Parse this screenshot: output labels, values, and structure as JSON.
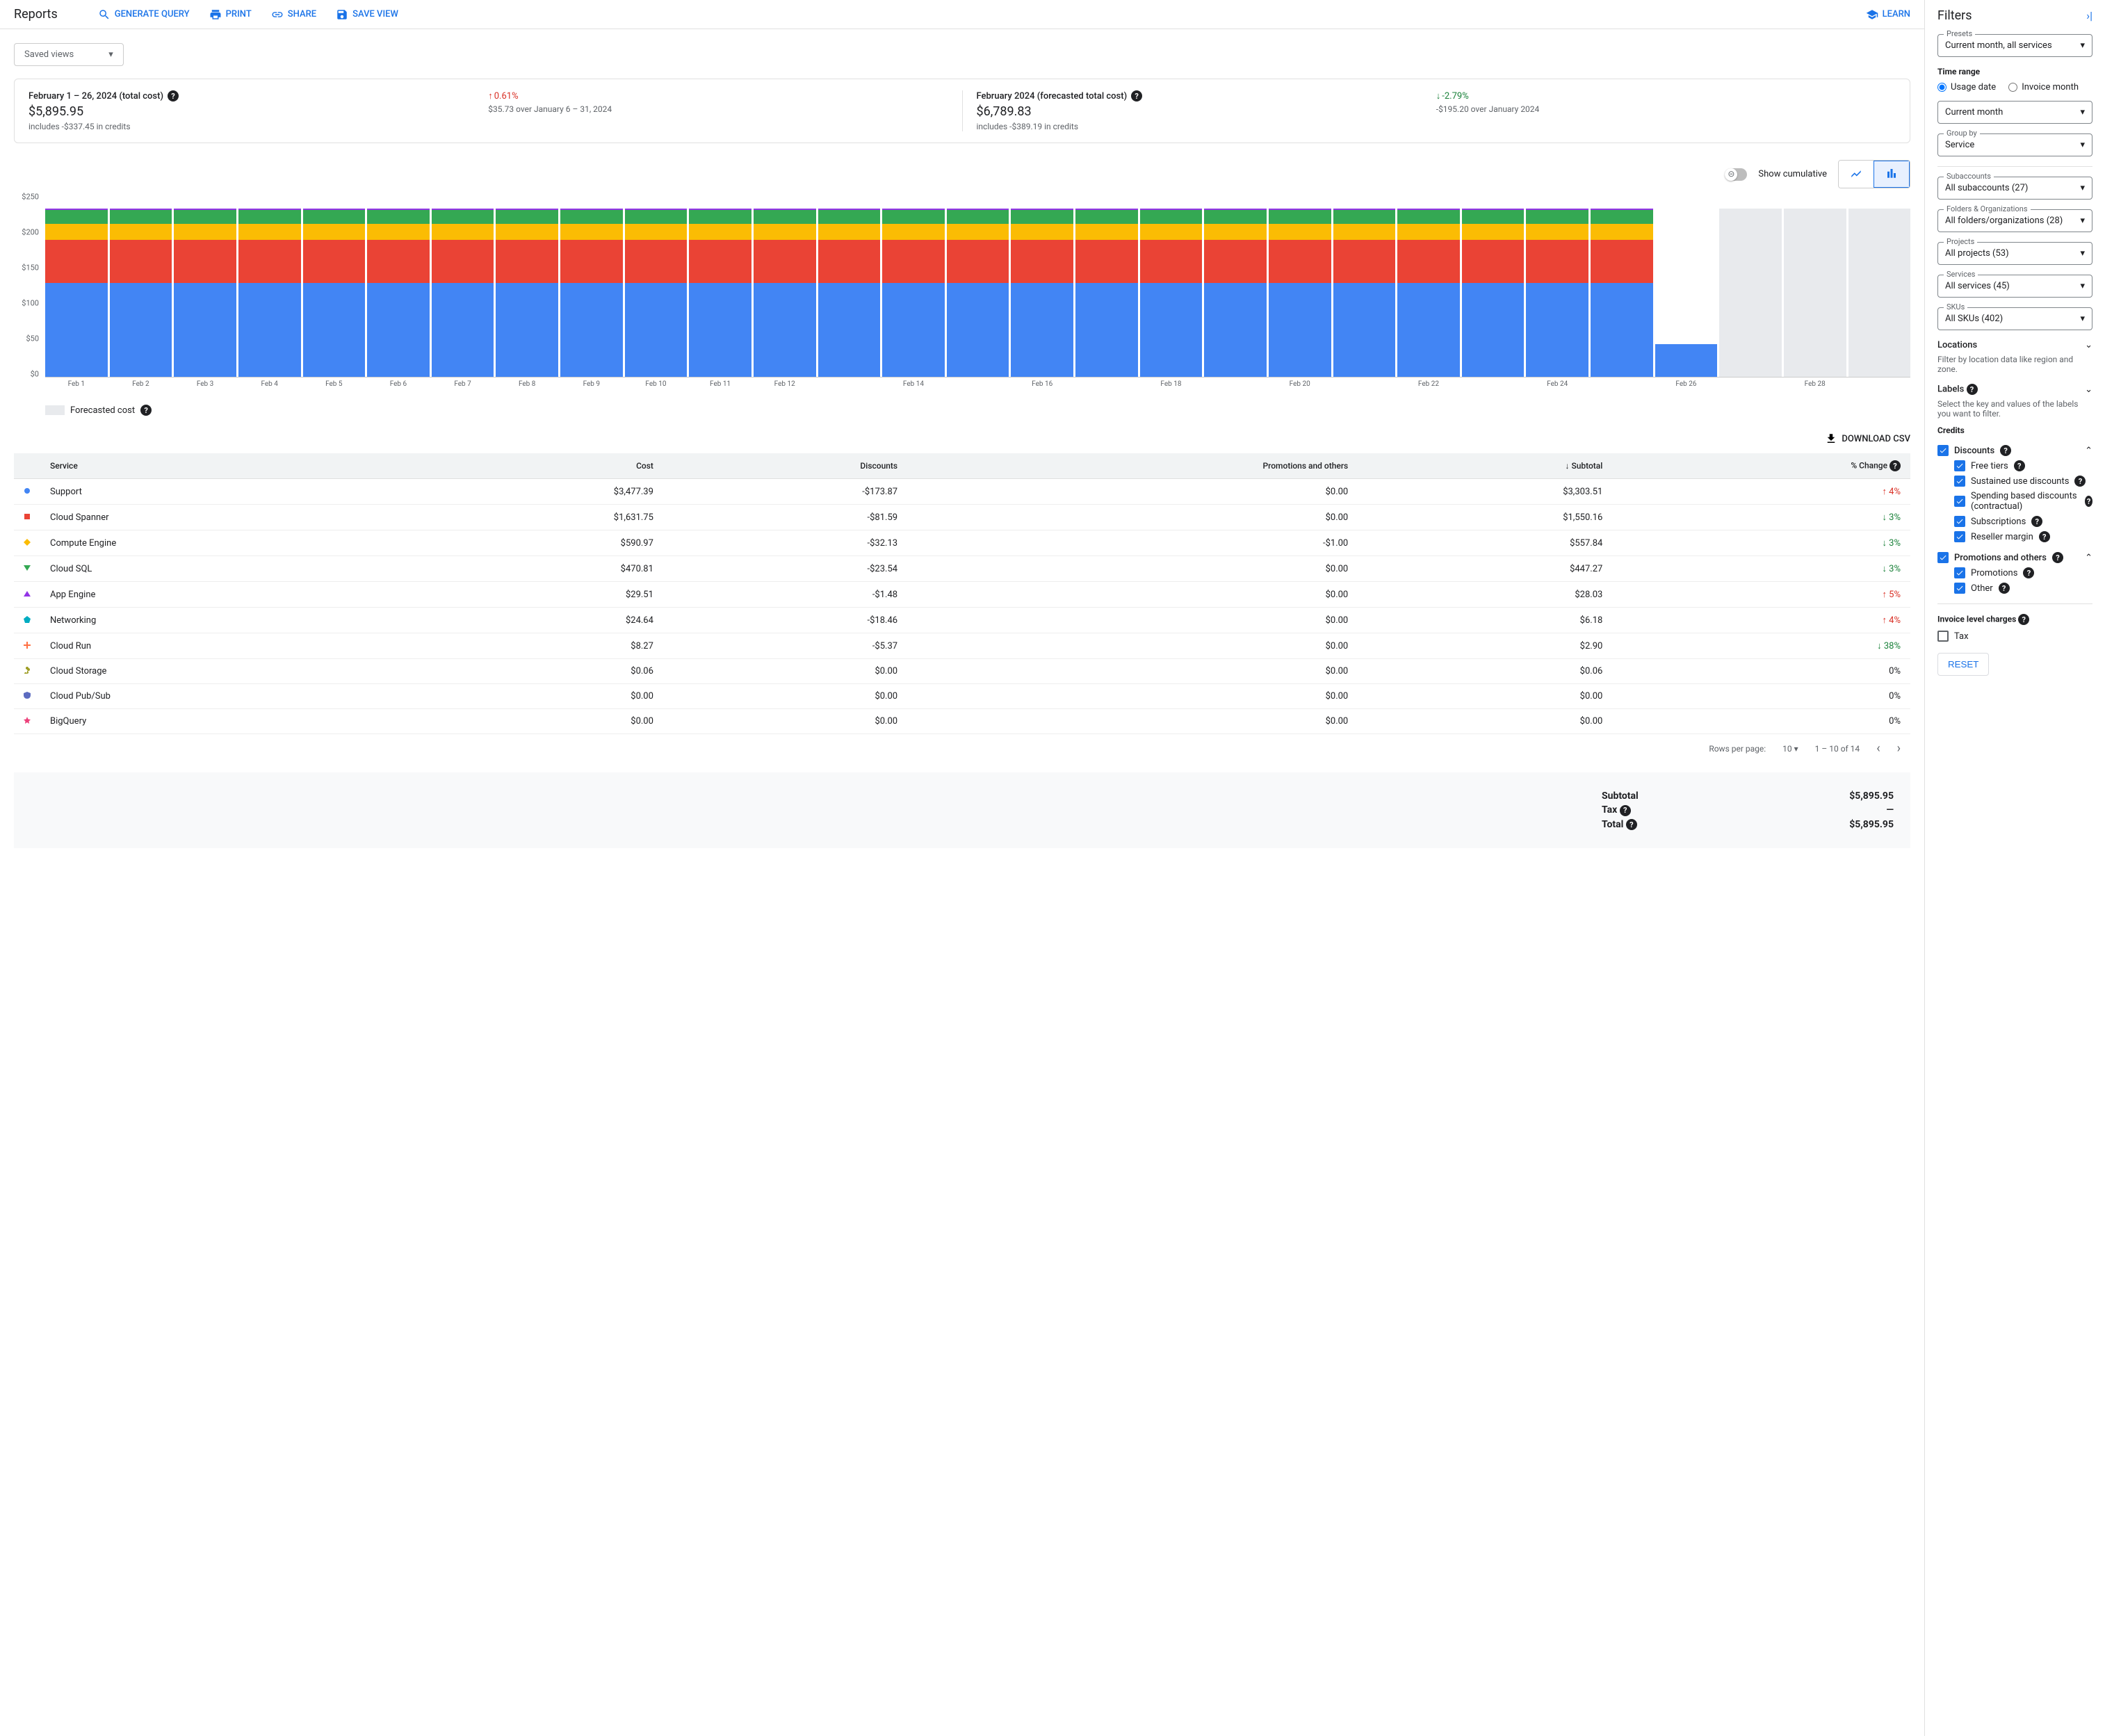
{
  "page_title": "Reports",
  "top_actions": {
    "generate_query": "GENERATE QUERY",
    "print": "PRINT",
    "share": "SHARE",
    "save_view": "SAVE VIEW",
    "learn": "LEARN"
  },
  "saved_views": "Saved views",
  "summary": {
    "left": {
      "title": "February 1 – 26, 2024 (total cost)",
      "amount": "$5,895.95",
      "sub": "includes -$337.45 in credits",
      "delta": "0.61%",
      "delta_dir": "up",
      "delta_sub": "$35.73 over January 6 – 31, 2024"
    },
    "right": {
      "title": "February 2024 (forecasted total cost)",
      "amount": "$6,789.83",
      "sub": "includes -$389.19 in credits",
      "delta": "-2.79%",
      "delta_dir": "down",
      "delta_sub": "-$195.20 over January 2024"
    }
  },
  "chart": {
    "cumulative_label": "Show cumulative",
    "type": "stacked-bar",
    "y_axis": {
      "max": 250,
      "ticks": [
        "$250",
        "$200",
        "$150",
        "$100",
        "$50",
        "$0"
      ]
    },
    "series_colors": {
      "support": "#4285f4",
      "spanner": "#ea4335",
      "compute": "#fbbc04",
      "cloudsql": "#34a853",
      "other": "#9334e6"
    },
    "forecast_color": "#e8eaed",
    "days": [
      {
        "label": "Feb 1",
        "stack": [
          130,
          60,
          22,
          20,
          2
        ],
        "forecast": false
      },
      {
        "label": "Feb 2",
        "stack": [
          130,
          60,
          22,
          20,
          2
        ],
        "forecast": false
      },
      {
        "label": "Feb 3",
        "stack": [
          130,
          60,
          22,
          20,
          2
        ],
        "forecast": false
      },
      {
        "label": "Feb 4",
        "stack": [
          130,
          60,
          22,
          20,
          2
        ],
        "forecast": false
      },
      {
        "label": "Feb 5",
        "stack": [
          130,
          60,
          22,
          20,
          2
        ],
        "forecast": false
      },
      {
        "label": "Feb 6",
        "stack": [
          130,
          60,
          22,
          20,
          2
        ],
        "forecast": false
      },
      {
        "label": "Feb 7",
        "stack": [
          130,
          60,
          22,
          20,
          2
        ],
        "forecast": false
      },
      {
        "label": "Feb 8",
        "stack": [
          130,
          60,
          22,
          20,
          2
        ],
        "forecast": false
      },
      {
        "label": "Feb 9",
        "stack": [
          130,
          60,
          22,
          20,
          2
        ],
        "forecast": false
      },
      {
        "label": "Feb 10",
        "stack": [
          130,
          60,
          22,
          20,
          2
        ],
        "forecast": false
      },
      {
        "label": "Feb 11",
        "stack": [
          130,
          60,
          22,
          20,
          2
        ],
        "forecast": false
      },
      {
        "label": "Feb 12",
        "stack": [
          130,
          60,
          22,
          20,
          2
        ],
        "forecast": false
      },
      {
        "label": "",
        "stack": [
          130,
          60,
          22,
          20,
          2
        ],
        "forecast": false
      },
      {
        "label": "Feb 14",
        "stack": [
          130,
          60,
          22,
          20,
          2
        ],
        "forecast": false
      },
      {
        "label": "",
        "stack": [
          130,
          60,
          22,
          20,
          2
        ],
        "forecast": false
      },
      {
        "label": "Feb 16",
        "stack": [
          130,
          60,
          22,
          20,
          2
        ],
        "forecast": false
      },
      {
        "label": "",
        "stack": [
          130,
          60,
          22,
          20,
          2
        ],
        "forecast": false
      },
      {
        "label": "Feb 18",
        "stack": [
          130,
          60,
          22,
          20,
          2
        ],
        "forecast": false
      },
      {
        "label": "",
        "stack": [
          130,
          60,
          22,
          20,
          2
        ],
        "forecast": false
      },
      {
        "label": "Feb 20",
        "stack": [
          130,
          60,
          22,
          20,
          2
        ],
        "forecast": false
      },
      {
        "label": "",
        "stack": [
          130,
          60,
          22,
          20,
          2
        ],
        "forecast": false
      },
      {
        "label": "Feb 22",
        "stack": [
          130,
          60,
          22,
          20,
          2
        ],
        "forecast": false
      },
      {
        "label": "",
        "stack": [
          130,
          60,
          22,
          20,
          2
        ],
        "forecast": false
      },
      {
        "label": "Feb 24",
        "stack": [
          130,
          60,
          22,
          20,
          2
        ],
        "forecast": false
      },
      {
        "label": "",
        "stack": [
          130,
          60,
          22,
          20,
          2
        ],
        "forecast": false
      },
      {
        "label": "Feb 26",
        "stack": [
          45,
          0,
          0,
          0,
          0
        ],
        "forecast": false
      },
      {
        "label": "",
        "stack": [
          234
        ],
        "forecast": true
      },
      {
        "label": "Feb 28",
        "stack": [
          234
        ],
        "forecast": true
      },
      {
        "label": "",
        "stack": [
          234
        ],
        "forecast": true
      }
    ],
    "forecast_legend": "Forecasted cost"
  },
  "download_csv": "DOWNLOAD CSV",
  "table": {
    "columns": [
      "",
      "Service",
      "Cost",
      "Discounts",
      "Promotions and others",
      "Subtotal",
      "% Change"
    ],
    "rows": [
      {
        "color": "#4285f4",
        "shape": "circle",
        "service": "Support",
        "cost": "$3,477.39",
        "discounts": "-$173.87",
        "promo": "$0.00",
        "subtotal": "$3,303.51",
        "change": "4%",
        "dir": "up"
      },
      {
        "color": "#ea4335",
        "shape": "square",
        "service": "Cloud Spanner",
        "cost": "$1,631.75",
        "discounts": "-$81.59",
        "promo": "$0.00",
        "subtotal": "$1,550.16",
        "change": "3%",
        "dir": "down"
      },
      {
        "color": "#fbbc04",
        "shape": "diamond",
        "service": "Compute Engine",
        "cost": "$590.97",
        "discounts": "-$32.13",
        "promo": "-$1.00",
        "subtotal": "$557.84",
        "change": "3%",
        "dir": "down"
      },
      {
        "color": "#34a853",
        "shape": "tri-down",
        "service": "Cloud SQL",
        "cost": "$470.81",
        "discounts": "-$23.54",
        "promo": "$0.00",
        "subtotal": "$447.27",
        "change": "3%",
        "dir": "down"
      },
      {
        "color": "#9334e6",
        "shape": "tri-up",
        "service": "App Engine",
        "cost": "$29.51",
        "discounts": "-$1.48",
        "promo": "$0.00",
        "subtotal": "$28.03",
        "change": "5%",
        "dir": "up"
      },
      {
        "color": "#00acc1",
        "shape": "pentagon",
        "service": "Networking",
        "cost": "$24.64",
        "discounts": "-$18.46",
        "promo": "$0.00",
        "subtotal": "$6.18",
        "change": "4%",
        "dir": "up"
      },
      {
        "color": "#ff7043",
        "shape": "plus",
        "service": "Cloud Run",
        "cost": "$8.27",
        "discounts": "-$5.37",
        "promo": "$0.00",
        "subtotal": "$2.90",
        "change": "38%",
        "dir": "down"
      },
      {
        "color": "#9e9d24",
        "shape": "clover",
        "service": "Cloud Storage",
        "cost": "$0.06",
        "discounts": "$0.00",
        "promo": "$0.00",
        "subtotal": "$0.06",
        "change": "0%",
        "dir": "none"
      },
      {
        "color": "#5c6bc0",
        "shape": "shield",
        "service": "Cloud Pub/Sub",
        "cost": "$0.00",
        "discounts": "$0.00",
        "promo": "$0.00",
        "subtotal": "$0.00",
        "change": "0%",
        "dir": "none"
      },
      {
        "color": "#ec407a",
        "shape": "star",
        "service": "BigQuery",
        "cost": "$0.00",
        "discounts": "$0.00",
        "promo": "$0.00",
        "subtotal": "$0.00",
        "change": "0%",
        "dir": "none"
      }
    ]
  },
  "pager": {
    "rpp_label": "Rows per page:",
    "rpp_value": "10",
    "range": "1 – 10 of 14"
  },
  "totals": {
    "subtotal_label": "Subtotal",
    "subtotal": "$5,895.95",
    "tax_label": "Tax",
    "tax": "—",
    "total_label": "Total",
    "total": "$5,895.95"
  },
  "filters": {
    "title": "Filters",
    "preset_label": "Presets",
    "preset_value": "Current month, all services",
    "time_range": "Time range",
    "usage_date": "Usage date",
    "invoice_month": "Invoice month",
    "current_month": "Current month",
    "group_by_label": "Group by",
    "group_by_value": "Service",
    "subaccounts_label": "Subaccounts",
    "subaccounts_value": "All subaccounts (27)",
    "folders_label": "Folders & Organizations",
    "folders_value": "All folders/organizations (28)",
    "projects_label": "Projects",
    "projects_value": "All projects (53)",
    "services_label": "Services",
    "services_value": "All services (45)",
    "skus_label": "SKUs",
    "skus_value": "All SKUs (402)",
    "locations": "Locations",
    "locations_help": "Filter by location data like region and zone.",
    "labels": "Labels",
    "labels_help": "Select the key and values of the labels you want to filter.",
    "credits": "Credits",
    "discounts": "Discounts",
    "free_tiers": "Free tiers",
    "sustained": "Sustained use discounts",
    "spending": "Spending based discounts (contractual)",
    "subscriptions": "Subscriptions",
    "reseller": "Reseller margin",
    "promotions_others": "Promotions and others",
    "promotions": "Promotions",
    "other": "Other",
    "invoice_charges": "Invoice level charges",
    "tax": "Tax",
    "reset": "RESET"
  }
}
